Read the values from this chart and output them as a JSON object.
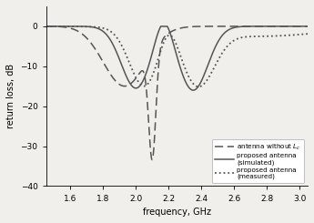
{
  "title": "",
  "xlabel": "frequency, GHz",
  "ylabel": "return loss, dB",
  "xlim": [
    1.45,
    3.05
  ],
  "ylim": [
    -40,
    5
  ],
  "yticks": [
    0,
    -10,
    -20,
    -30,
    -40
  ],
  "xticks": [
    1.6,
    1.8,
    2.0,
    2.2,
    2.4,
    2.6,
    2.8,
    3.0
  ],
  "legend_labels": [
    "antenna without $L_c$",
    "proposed antenna\n(simulated)",
    "proposed antenna\n(measured)"
  ],
  "line_color": "#555555",
  "background_color": "#f0efeb"
}
